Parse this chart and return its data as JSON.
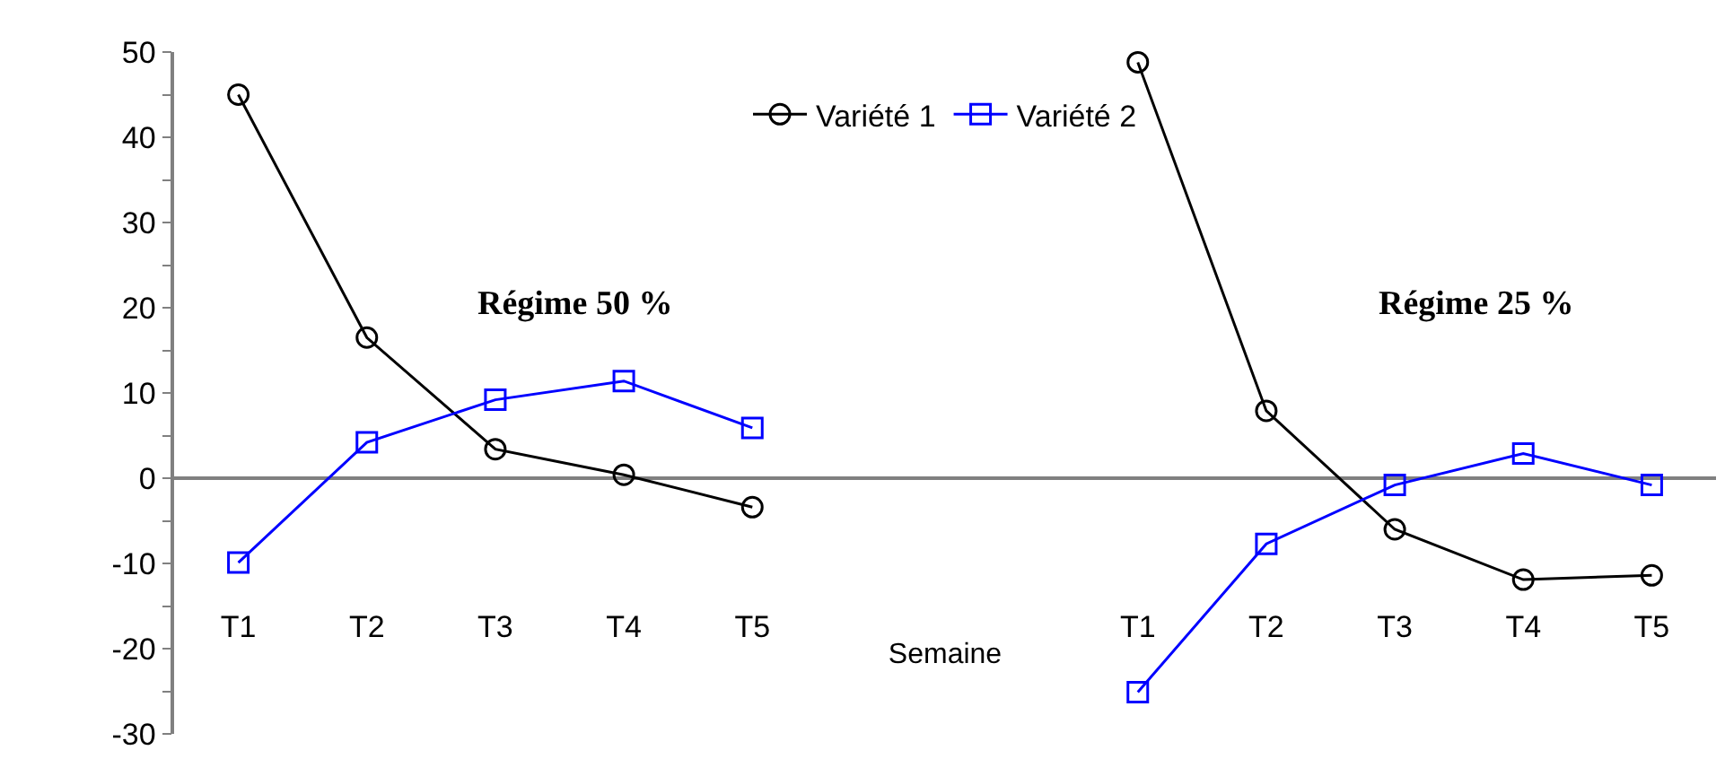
{
  "chart_data": {
    "type": "line",
    "categories": [
      "T1",
      "T2",
      "T3",
      "T4",
      "T5",
      null,
      null,
      "T1",
      "T2",
      "T3",
      "T4",
      "T5"
    ],
    "series": [
      {
        "name": "Variété 1",
        "color": "#000000",
        "marker": "circle",
        "values": [
          45,
          16.5,
          3.4,
          0.4,
          -3.4,
          null,
          null,
          48.8,
          7.9,
          -6.0,
          -11.9,
          -11.4
        ]
      },
      {
        "name": "Variété 2",
        "color": "#0000ff",
        "marker": "square",
        "values": [
          -9.9,
          4.2,
          9.2,
          11.4,
          5.9,
          null,
          null,
          -25.1,
          -7.7,
          -0.8,
          2.9,
          -0.8
        ]
      }
    ],
    "xlabel": "Semaine",
    "annotations": [
      "Régime 50 %",
      "Régime 25 %"
    ],
    "ylim": [
      -30,
      50
    ],
    "yticks": [
      -30,
      {
        "value": -25,
        "label": null
      },
      -20,
      {
        "value": -15,
        "label": null
      },
      -10,
      {
        "value": -5,
        "label": null
      },
      0,
      {
        "value": 5,
        "label": null
      },
      10,
      {
        "value": 15,
        "label": null
      },
      20,
      {
        "value": 25,
        "label": null
      },
      30,
      {
        "value": 35,
        "label": null
      },
      40,
      {
        "value": 45,
        "label": null
      },
      50
    ],
    "legend": "top",
    "line_style": "solid"
  }
}
